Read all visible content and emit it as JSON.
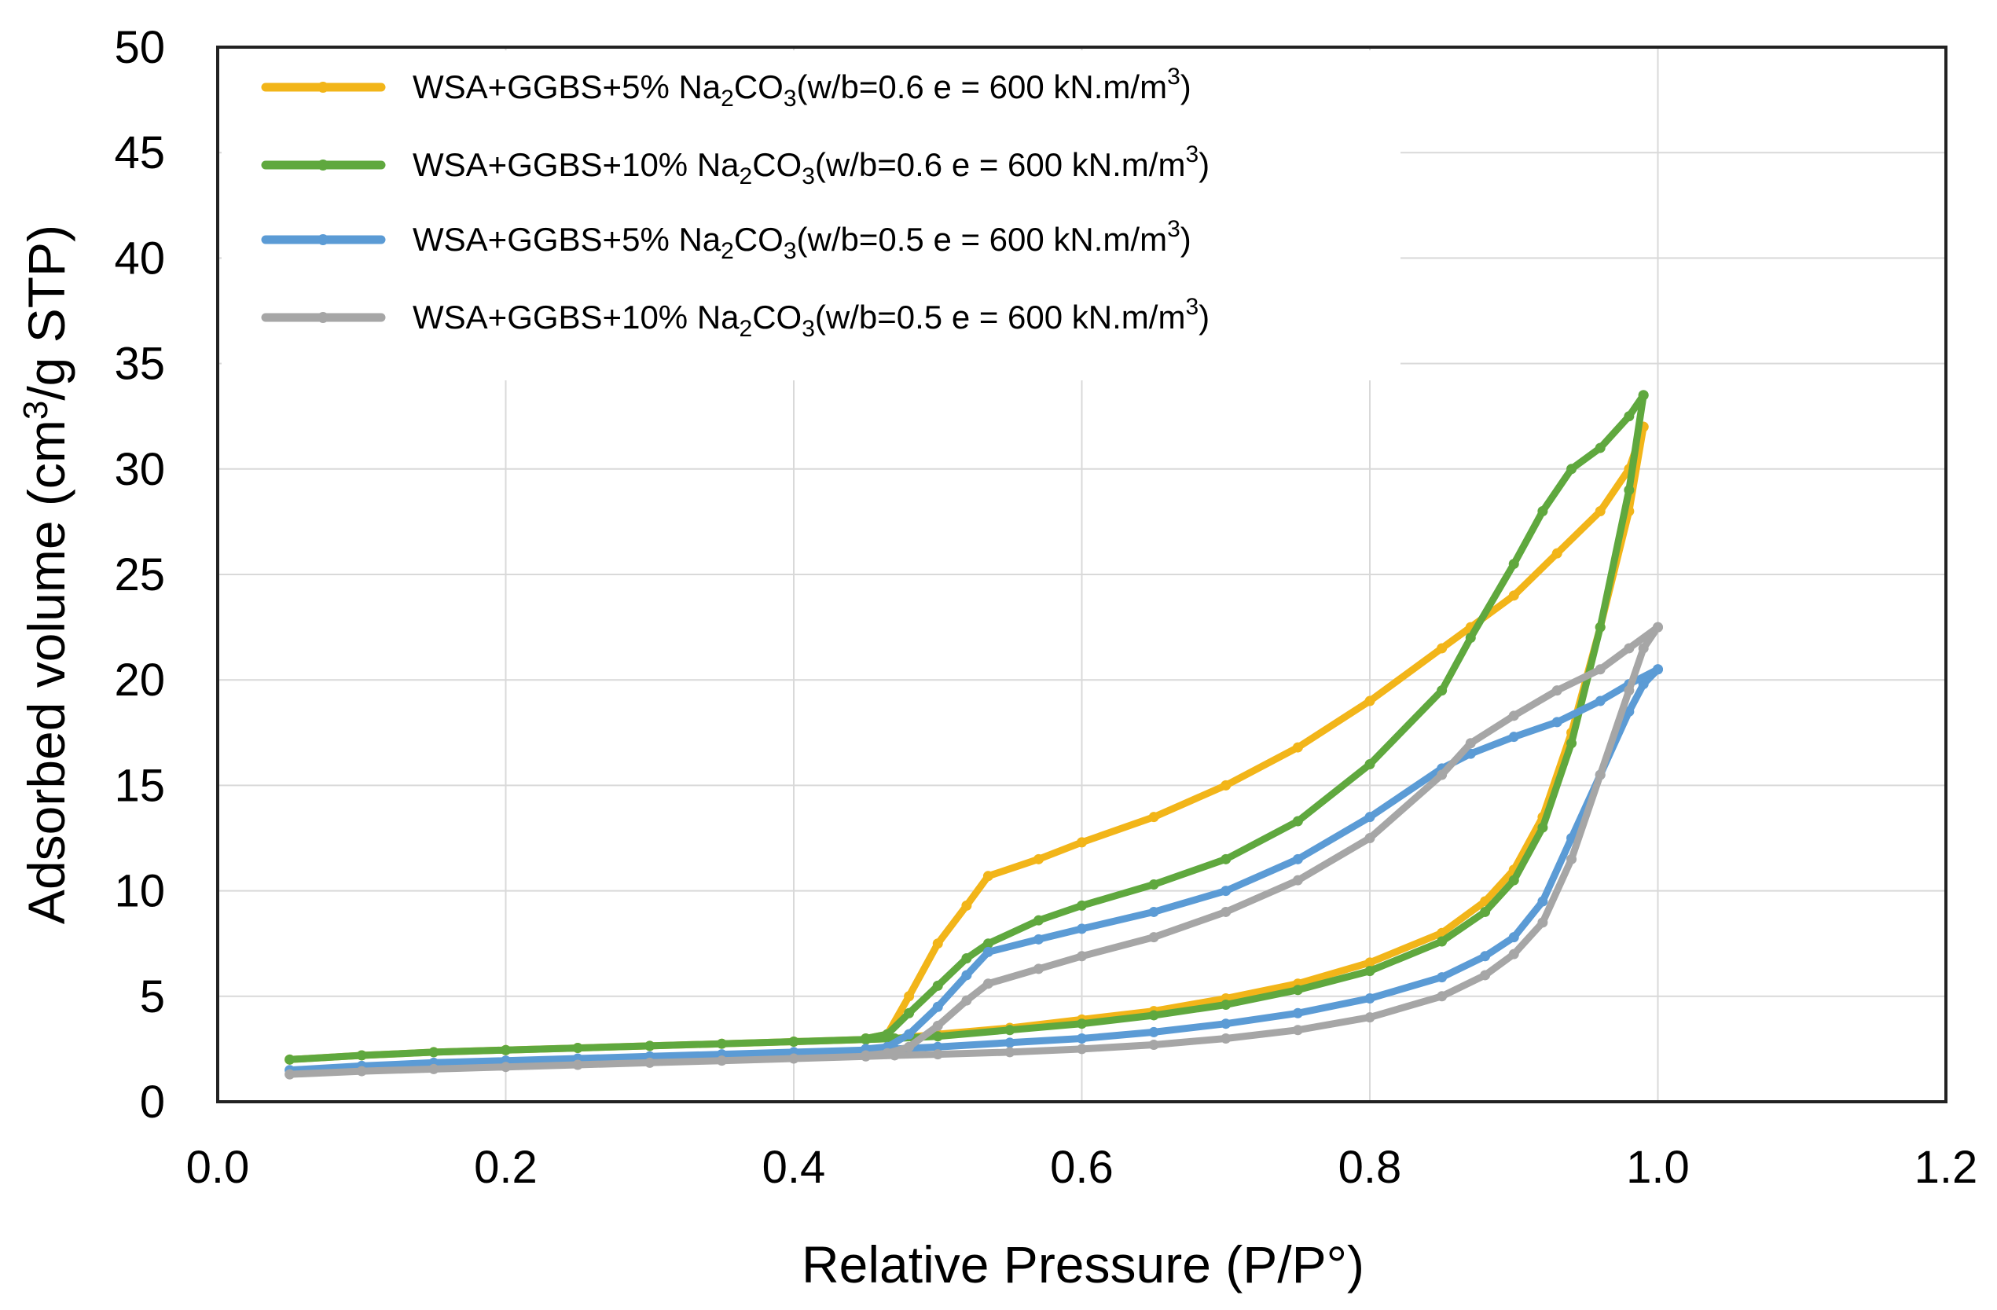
{
  "chart_data": {
    "type": "line",
    "title": "",
    "xlabel": "Relative Pressure (P/P°)",
    "ylabel": "Adsorbed volume (cm³/g STP)",
    "xlim": [
      0.0,
      1.2
    ],
    "ylim": [
      0,
      50
    ],
    "xticks": [
      "0.0",
      "0.2",
      "0.4",
      "0.6",
      "0.8",
      "1.0",
      "1.2"
    ],
    "yticks": [
      "0",
      "5",
      "10",
      "15",
      "20",
      "25",
      "30",
      "35",
      "40",
      "45",
      "50"
    ],
    "grid": true,
    "legend_position": "top-left",
    "series": [
      {
        "name": "WSA+GGBS+5% Na2CO3(w/b=0.6 e = 600 kN.m/m3)",
        "legend": {
          "pre": "WSA+GGBS+5% Na",
          "sub1": "2",
          "mid": "CO",
          "sub2": "3",
          "post": "(w/b=0.6 e = 600 kN.m/m",
          "sup": "3",
          "end": ")"
        },
        "color": "#F2B519",
        "adsorption": {
          "x": [
            0.05,
            0.1,
            0.15,
            0.2,
            0.25,
            0.3,
            0.35,
            0.4,
            0.45,
            0.47,
            0.5,
            0.55,
            0.6,
            0.65,
            0.7,
            0.75,
            0.8,
            0.85,
            0.88,
            0.9,
            0.92,
            0.94,
            0.96,
            0.98,
            0.99
          ],
          "y": [
            2.0,
            2.2,
            2.35,
            2.45,
            2.55,
            2.65,
            2.75,
            2.85,
            2.95,
            3.0,
            3.2,
            3.5,
            3.9,
            4.3,
            4.9,
            5.6,
            6.6,
            8.0,
            9.5,
            11.0,
            13.5,
            17.5,
            22.5,
            28.0,
            32.0
          ]
        },
        "desorption": {
          "x": [
            0.99,
            0.98,
            0.96,
            0.93,
            0.9,
            0.87,
            0.85,
            0.8,
            0.75,
            0.7,
            0.65,
            0.6,
            0.57,
            0.535,
            0.52,
            0.5,
            0.48,
            0.465,
            0.45
          ],
          "y": [
            32.0,
            30.0,
            28.0,
            26.0,
            24.0,
            22.5,
            21.5,
            19.0,
            16.8,
            15.0,
            13.5,
            12.3,
            11.5,
            10.7,
            9.3,
            7.5,
            5.0,
            3.2,
            3.0
          ]
        }
      },
      {
        "name": "WSA+GGBS+10% Na2CO3(w/b=0.6 e = 600 kN.m/m3)",
        "legend": {
          "pre": "WSA+GGBS+10% Na",
          "sub1": "2",
          "mid": "CO",
          "sub2": "3",
          "post": "(w/b=0.6 e = 600 kN.m/m",
          "sup": "3",
          "end": ")"
        },
        "color": "#5FA83E",
        "adsorption": {
          "x": [
            0.05,
            0.1,
            0.15,
            0.2,
            0.25,
            0.3,
            0.35,
            0.4,
            0.45,
            0.47,
            0.5,
            0.55,
            0.6,
            0.65,
            0.7,
            0.75,
            0.8,
            0.85,
            0.88,
            0.9,
            0.92,
            0.94,
            0.96,
            0.98,
            0.99
          ],
          "y": [
            2.0,
            2.2,
            2.35,
            2.45,
            2.55,
            2.65,
            2.75,
            2.85,
            2.95,
            3.0,
            3.1,
            3.4,
            3.7,
            4.1,
            4.6,
            5.3,
            6.2,
            7.6,
            9.0,
            10.5,
            13.0,
            17.0,
            22.5,
            29.0,
            33.5
          ]
        },
        "desorption": {
          "x": [
            0.99,
            0.98,
            0.96,
            0.94,
            0.92,
            0.9,
            0.87,
            0.85,
            0.8,
            0.75,
            0.7,
            0.65,
            0.6,
            0.57,
            0.535,
            0.52,
            0.5,
            0.48,
            0.465,
            0.45
          ],
          "y": [
            33.5,
            32.5,
            31.0,
            30.0,
            28.0,
            25.5,
            22.0,
            19.5,
            16.0,
            13.3,
            11.5,
            10.3,
            9.3,
            8.6,
            7.5,
            6.8,
            5.5,
            4.2,
            3.2,
            3.0
          ]
        }
      },
      {
        "name": "WSA+GGBS+5% Na2CO3(w/b=0.5 e = 600 kN.m/m3)",
        "legend": {
          "pre": "WSA+GGBS+5% Na",
          "sub1": "2",
          "mid": "CO",
          "sub2": "3",
          "post": "(w/b=0.5 e = 600 kN.m/m",
          "sup": "3",
          "end": ")"
        },
        "color": "#5B9BD5",
        "adsorption": {
          "x": [
            0.05,
            0.1,
            0.15,
            0.2,
            0.25,
            0.3,
            0.35,
            0.4,
            0.45,
            0.47,
            0.5,
            0.55,
            0.6,
            0.65,
            0.7,
            0.75,
            0.8,
            0.85,
            0.88,
            0.9,
            0.92,
            0.94,
            0.96,
            0.98,
            0.99,
            1.0
          ],
          "y": [
            1.5,
            1.7,
            1.85,
            1.95,
            2.05,
            2.15,
            2.25,
            2.35,
            2.45,
            2.5,
            2.6,
            2.8,
            3.0,
            3.3,
            3.7,
            4.2,
            4.9,
            5.9,
            6.9,
            7.8,
            9.5,
            12.5,
            15.5,
            18.5,
            19.8,
            20.5
          ]
        },
        "desorption": {
          "x": [
            1.0,
            0.98,
            0.96,
            0.93,
            0.9,
            0.87,
            0.85,
            0.8,
            0.75,
            0.7,
            0.65,
            0.6,
            0.57,
            0.535,
            0.52,
            0.5,
            0.48,
            0.465,
            0.45
          ],
          "y": [
            20.5,
            19.8,
            19.0,
            18.0,
            17.3,
            16.5,
            15.8,
            13.5,
            11.5,
            10.0,
            9.0,
            8.2,
            7.7,
            7.1,
            6.0,
            4.5,
            3.2,
            2.6,
            2.5
          ]
        }
      },
      {
        "name": "WSA+GGBS+10% Na2CO3(w/b=0.5 e = 600 kN.m/m3)",
        "legend": {
          "pre": "WSA+GGBS+10% Na",
          "sub1": "2",
          "mid": "CO",
          "sub2": "3",
          "post": "(w/b=0.5 e = 600 kN.m/m",
          "sup": "3",
          "end": ")"
        },
        "color": "#A6A6A6",
        "adsorption": {
          "x": [
            0.05,
            0.1,
            0.15,
            0.2,
            0.25,
            0.3,
            0.35,
            0.4,
            0.45,
            0.47,
            0.5,
            0.55,
            0.6,
            0.65,
            0.7,
            0.75,
            0.8,
            0.85,
            0.88,
            0.9,
            0.92,
            0.94,
            0.96,
            0.98,
            0.99,
            1.0
          ],
          "y": [
            1.3,
            1.45,
            1.55,
            1.65,
            1.75,
            1.85,
            1.95,
            2.05,
            2.15,
            2.2,
            2.25,
            2.35,
            2.5,
            2.7,
            3.0,
            3.4,
            4.0,
            5.0,
            6.0,
            7.0,
            8.5,
            11.5,
            15.5,
            19.5,
            21.5,
            22.5
          ]
        },
        "desorption": {
          "x": [
            1.0,
            0.98,
            0.96,
            0.93,
            0.9,
            0.87,
            0.85,
            0.8,
            0.75,
            0.7,
            0.65,
            0.6,
            0.57,
            0.535,
            0.52,
            0.5,
            0.48,
            0.465,
            0.45
          ],
          "y": [
            22.5,
            21.5,
            20.5,
            19.5,
            18.3,
            17.0,
            15.5,
            12.5,
            10.5,
            9.0,
            7.8,
            6.9,
            6.3,
            5.6,
            4.8,
            3.6,
            2.6,
            2.3,
            2.2
          ]
        }
      }
    ]
  }
}
